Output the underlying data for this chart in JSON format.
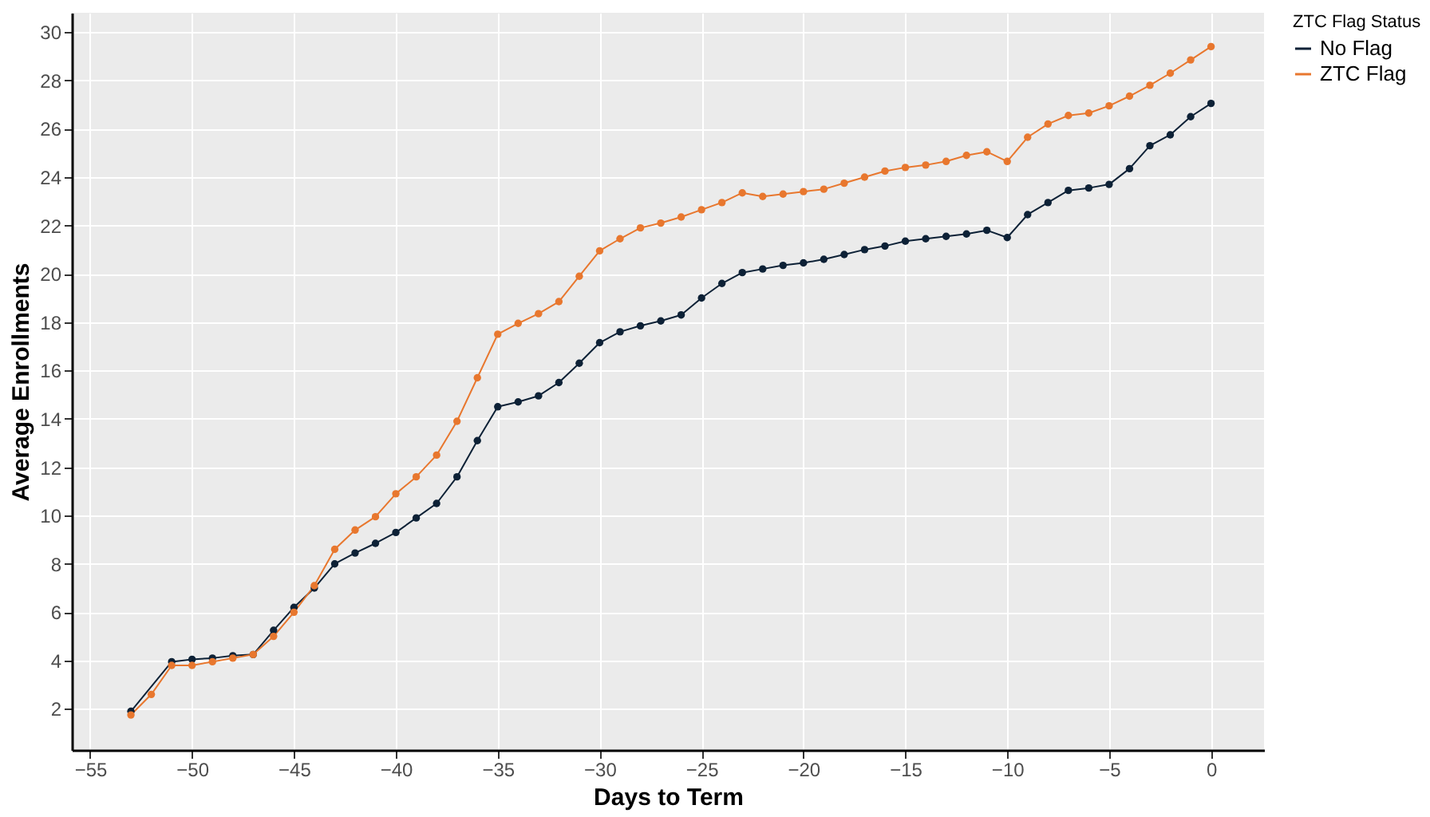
{
  "chart_data": {
    "type": "line",
    "xlabel": "Days to Term",
    "ylabel": "Average Enrollments",
    "legend_title": "ZTC Flag Status",
    "x": [
      -53,
      -52,
      -51,
      -50,
      -49,
      -48,
      -47,
      -46,
      -45,
      -44,
      -43,
      -42,
      -41,
      -40,
      -39,
      -38,
      -37,
      -36,
      -35,
      -34,
      -33,
      -32,
      -31,
      -30,
      -29,
      -28,
      -27,
      -26,
      -25,
      -24,
      -23,
      -22,
      -21,
      -20,
      -19,
      -18,
      -17,
      -16,
      -15,
      -14,
      -13,
      -12,
      -11,
      -10,
      -9,
      -8,
      -7,
      -6,
      -5,
      -4,
      -3,
      -2,
      -1,
      0
    ],
    "series": [
      {
        "name": "No Flag",
        "color": "#0d2136",
        "values": [
          1.9,
          null,
          3.95,
          4.05,
          4.1,
          4.2,
          4.25,
          5.25,
          6.2,
          7.0,
          8.0,
          8.45,
          8.85,
          9.3,
          9.9,
          10.5,
          11.6,
          13.1,
          14.5,
          14.7,
          14.95,
          15.5,
          16.3,
          17.15,
          17.6,
          17.85,
          18.05,
          18.3,
          19.0,
          19.6,
          20.05,
          20.2,
          20.35,
          20.45,
          20.6,
          20.8,
          21.0,
          21.15,
          21.35,
          21.45,
          21.55,
          21.65,
          21.8,
          21.5,
          22.45,
          22.95,
          23.45,
          23.55,
          23.7,
          24.35,
          25.3,
          25.75,
          26.5,
          27.05
        ]
      },
      {
        "name": "ZTC Flag",
        "color": "#e8772e",
        "values": [
          1.75,
          2.6,
          3.8,
          3.8,
          3.95,
          4.1,
          4.25,
          5.0,
          6.0,
          7.1,
          8.6,
          9.4,
          9.95,
          10.9,
          11.6,
          12.5,
          13.9,
          15.7,
          17.5,
          17.95,
          18.35,
          18.85,
          19.9,
          20.95,
          21.45,
          21.9,
          22.1,
          22.35,
          22.65,
          22.95,
          23.35,
          23.2,
          23.3,
          23.4,
          23.5,
          23.75,
          24.0,
          24.25,
          24.4,
          24.5,
          24.65,
          24.9,
          25.05,
          24.65,
          25.65,
          26.2,
          26.55,
          26.65,
          26.95,
          27.35,
          27.8,
          28.3,
          28.85,
          29.4
        ]
      }
    ],
    "xlim": [
      -55.9,
      2.6
    ],
    "xticks": [
      -55,
      -50,
      -45,
      -40,
      -35,
      -30,
      -25,
      -20,
      -15,
      -10,
      -5,
      0
    ],
    "ylim": [
      0.3,
      30.8
    ],
    "yticks": [
      2,
      4,
      6,
      8,
      10,
      12,
      14,
      16,
      18,
      20,
      22,
      24,
      26,
      28,
      30
    ],
    "grid": true,
    "legend": "right",
    "marker": "circle",
    "line_style": "solid"
  }
}
